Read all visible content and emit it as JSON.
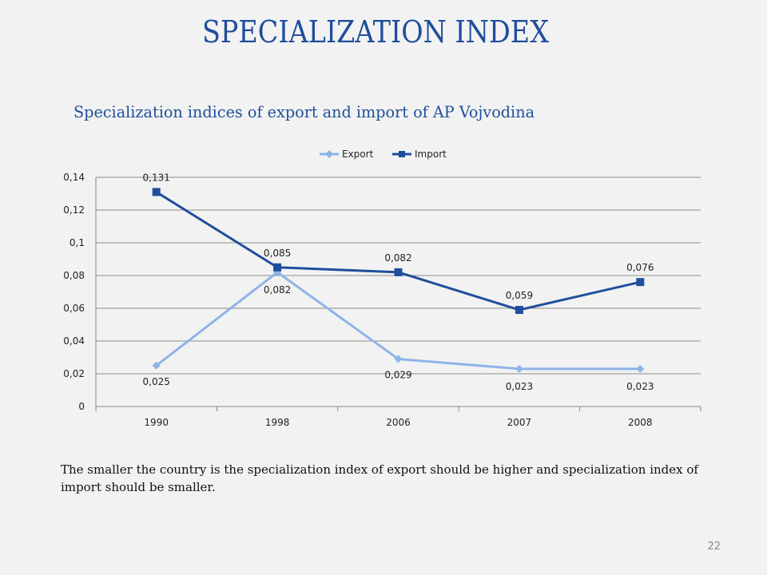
{
  "slide": {
    "title": "SPECIALIZATION INDEX",
    "note": "The smaller the country is the specialization index of export should be higher and specialization index of import should be smaller.",
    "page_number": "22"
  },
  "chart_data": {
    "type": "line",
    "title": "Specialization indices of export and import of AP Vojvodina",
    "categories": [
      "1990",
      "1998",
      "2006",
      "2007",
      "2008"
    ],
    "ylim": [
      0,
      0.14
    ],
    "yticks": [
      0,
      0.02,
      0.04,
      0.06,
      0.08,
      0.1,
      0.12,
      0.14
    ],
    "ytick_labels": [
      "0",
      "0,02",
      "0,04",
      "0,06",
      "0,08",
      "0,1",
      "0,12",
      "0,14"
    ],
    "grid": true,
    "legend_position": "top",
    "series": [
      {
        "name": "Export",
        "color": "#8db4e8",
        "marker": "diamond",
        "values": [
          0.025,
          0.082,
          0.029,
          0.023,
          0.023
        ],
        "labels": [
          "0,025",
          "0,082",
          "0,029",
          "0,023",
          "0,023"
        ]
      },
      {
        "name": "Import",
        "color": "#1f4e9c",
        "marker": "square",
        "values": [
          0.131,
          0.085,
          0.082,
          0.059,
          0.076
        ],
        "labels": [
          "0,131",
          "0,085",
          "0,082",
          "0,059",
          "0,076"
        ]
      }
    ]
  }
}
